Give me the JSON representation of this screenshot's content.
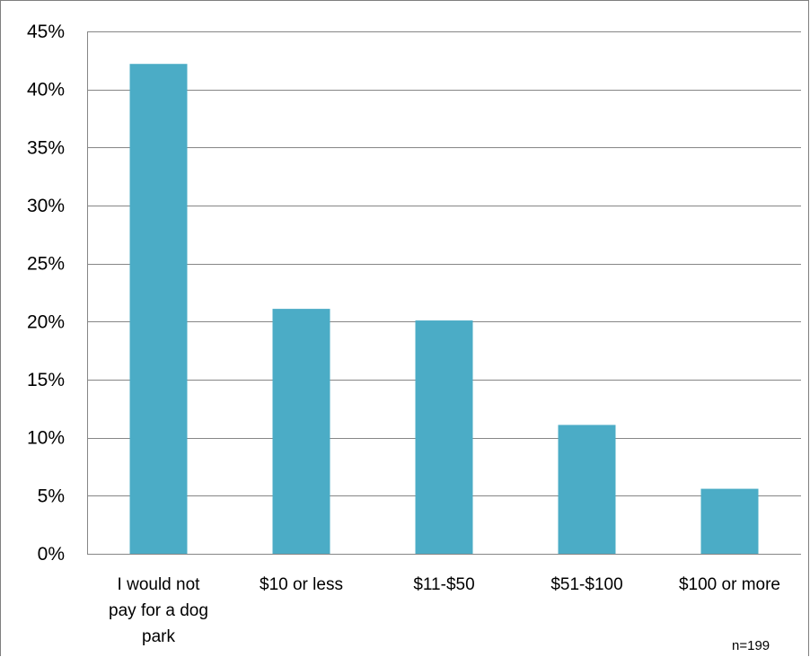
{
  "chart_data": {
    "type": "bar",
    "categories": [
      [
        "I would not",
        "pay for a dog",
        "park"
      ],
      [
        "$10 or less"
      ],
      [
        "$11-$50"
      ],
      [
        "$51-$100"
      ],
      [
        "$100 or more"
      ]
    ],
    "values": [
      42.2,
      21.1,
      20.1,
      11.1,
      5.6
    ],
    "ylim": [
      0,
      45
    ],
    "yticks": [
      "0%",
      "5%",
      "10%",
      "15%",
      "20%",
      "25%",
      "30%",
      "35%",
      "40%",
      "45%"
    ],
    "ytick_values": [
      0,
      5,
      10,
      15,
      20,
      25,
      30,
      35,
      40,
      45
    ],
    "grid": true,
    "bar_color": "#4bacc6",
    "annotation": "n=199"
  }
}
